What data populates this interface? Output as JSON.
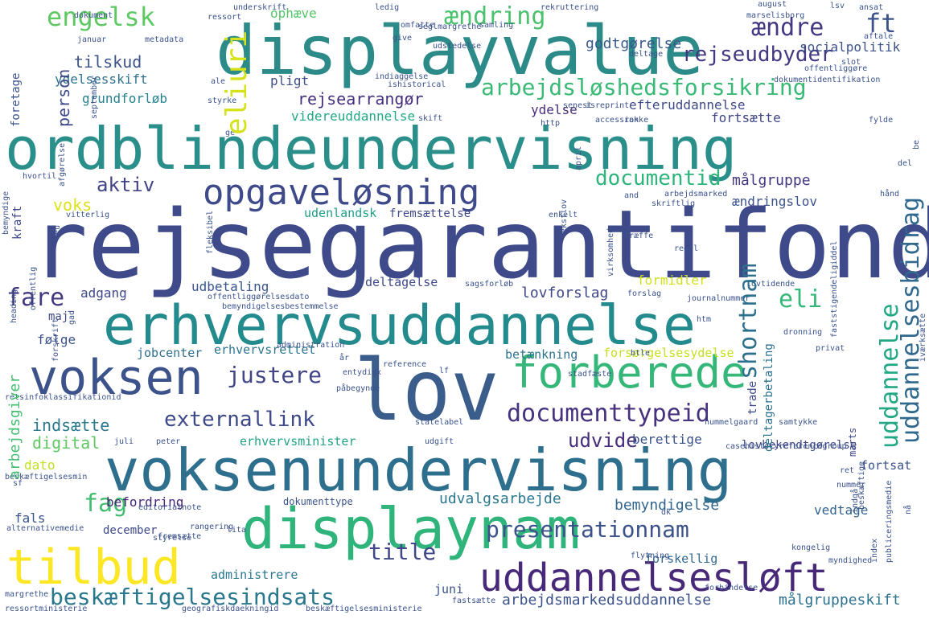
{
  "words": [
    {
      "text": "rejsegarantifond",
      "color": "#3f4a8a"
    },
    {
      "text": "ordblindeundervisning",
      "color": "#2a8f8a"
    },
    {
      "text": "voksenundervisning",
      "color": "#2e6f8e"
    },
    {
      "text": "displayvalue",
      "color": "#2c8a89"
    },
    {
      "text": "erhvervsuddannelse",
      "color": "#238a8d"
    },
    {
      "text": "lov",
      "color": "#3a5d8c"
    },
    {
      "text": "displaynam",
      "color": "#2fb47c"
    },
    {
      "text": "voksen",
      "color": "#3b528b"
    },
    {
      "text": "forberede",
      "color": "#35b779"
    },
    {
      "text": "uddannelsesløft",
      "color": "#482878"
    },
    {
      "text": "tilbud",
      "color": "#fde725"
    },
    {
      "text": "opgaveløsning",
      "color": "#3e4a89"
    },
    {
      "text": "arbejdsløshedsforsikring",
      "color": "#3aba76"
    },
    {
      "text": "documenttypeid",
      "color": "#46327e"
    },
    {
      "text": "presentationnam",
      "color": "#3b528b"
    },
    {
      "text": "beskæftigelsesindsats",
      "color": "#2a788e"
    },
    {
      "text": "externallink",
      "color": "#3e4989"
    },
    {
      "text": "justere",
      "color": "#414487"
    },
    {
      "text": "engelsk",
      "color": "#5ec962"
    },
    {
      "text": "rejseudbyder",
      "color": "#453882"
    },
    {
      "text": "ændring",
      "color": "#4ac16d"
    },
    {
      "text": "ændre",
      "color": "#443983"
    },
    {
      "text": "ft",
      "color": "#3b528b"
    },
    {
      "text": "eliuri",
      "color": "#d5e21a"
    },
    {
      "text": "documentid",
      "color": "#2fb47c"
    },
    {
      "text": "shortnam",
      "color": "#2d708e"
    },
    {
      "text": "uddannelsesbidrag",
      "color": "#31688e"
    },
    {
      "text": "uddannelse",
      "color": "#22a884"
    },
    {
      "text": "fare",
      "color": "#443a83"
    },
    {
      "text": "fag",
      "color": "#42be71"
    },
    {
      "text": "title",
      "color": "#404688"
    },
    {
      "text": "eli",
      "color": "#35b779"
    },
    {
      "text": "rejsearrangør",
      "color": "#46307e"
    },
    {
      "text": "aktiv",
      "color": "#414487"
    },
    {
      "text": "tilskud",
      "color": "#3b528b"
    },
    {
      "text": "person",
      "color": "#3e4a89"
    },
    {
      "text": "udvide",
      "color": "#472d7b"
    },
    {
      "text": "arbejdsmarkedsuddannelse",
      "color": "#3b528b"
    },
    {
      "text": "målgruppeskift",
      "color": "#2c728e"
    },
    {
      "text": "indsætte",
      "color": "#2a788e"
    },
    {
      "text": "digital",
      "color": "#5ec962"
    },
    {
      "text": "udvalgsarbejde",
      "color": "#2a788e"
    },
    {
      "text": "bemyndigelse",
      "color": "#32658e"
    },
    {
      "text": "godtgørelse",
      "color": "#38598c"
    },
    {
      "text": "målgruppe",
      "color": "#453781"
    },
    {
      "text": "lovforslag",
      "color": "#3f4788"
    },
    {
      "text": "udbetaling",
      "color": "#39558c"
    },
    {
      "text": "adgang",
      "color": "#3f4889"
    },
    {
      "text": "ophæve",
      "color": "#54c568"
    },
    {
      "text": "ydelsesskift",
      "color": "#2c728e"
    },
    {
      "text": "grundforløb",
      "color": "#26828e"
    },
    {
      "text": "pligt",
      "color": "#3d4e8a"
    },
    {
      "text": "videreuddannelse",
      "color": "#22a884"
    },
    {
      "text": "efteruddannelse",
      "color": "#3e4989"
    },
    {
      "text": "fortsætte",
      "color": "#404688"
    },
    {
      "text": "ydelse",
      "color": "#472c7a"
    },
    {
      "text": "ændringslov",
      "color": "#3b528b"
    },
    {
      "text": "udenlandsk",
      "color": "#1f9e89"
    },
    {
      "text": "fremsættelse",
      "color": "#3f4889"
    },
    {
      "text": "voks",
      "color": "#dde318"
    },
    {
      "text": "formidler",
      "color": "#d0e11c"
    },
    {
      "text": "deltagelse",
      "color": "#3e4989"
    },
    {
      "text": "følge",
      "color": "#3b528b"
    },
    {
      "text": "jobcenter",
      "color": "#2e6e8e"
    },
    {
      "text": "erhvervsrettet",
      "color": "#2b748e"
    },
    {
      "text": "betænkning",
      "color": "#2c728e"
    },
    {
      "text": "forsørgelsesydelse",
      "color": "#c8e020"
    },
    {
      "text": "erhvervsminister",
      "color": "#20a386"
    },
    {
      "text": "berettige",
      "color": "#3b528b"
    },
    {
      "text": "lovbekendtgørelse",
      "color": "#3f4889"
    },
    {
      "text": "dato",
      "color": "#c2df23"
    },
    {
      "text": "befordring",
      "color": "#482878"
    },
    {
      "text": "december",
      "color": "#3e4989"
    },
    {
      "text": "fals",
      "color": "#3b528b"
    },
    {
      "text": "administrere",
      "color": "#2a788e"
    },
    {
      "text": "forskellig",
      "color": "#31688e"
    },
    {
      "text": "juni",
      "color": "#3b528b"
    },
    {
      "text": "vedtage",
      "color": "#33638d"
    },
    {
      "text": "fortsat",
      "color": "#3b528b"
    },
    {
      "text": "kraft",
      "color": "#3f4889"
    },
    {
      "text": "arbejdsgiver",
      "color": "#43bf71"
    },
    {
      "text": "foretage",
      "color": "#3b528b"
    },
    {
      "text": "maj",
      "color": "#3f4889"
    },
    {
      "text": "trade",
      "color": "#3e4989"
    },
    {
      "text": "deltagerbetaling",
      "color": "#2c728e"
    },
    {
      "text": "marts",
      "color": "#404688"
    },
    {
      "text": "socialpolitik",
      "color": "#3b528b"
    },
    {
      "text": "dokumenttype",
      "color": "#3b528b"
    },
    {
      "text": "underskrift",
      "color": "#3b528b"
    },
    {
      "text": "ledig",
      "color": "#3b528b"
    },
    {
      "text": "samling",
      "color": "#3b528b"
    },
    {
      "text": "ansat",
      "color": "#3b528b"
    },
    {
      "text": "august",
      "color": "#3b528b"
    },
    {
      "text": "marselisborg",
      "color": "#3b528b"
    },
    {
      "text": "januar",
      "color": "#3b528b"
    },
    {
      "text": "metadata",
      "color": "#3b528b"
    },
    {
      "text": "rekruttering",
      "color": "#3b528b"
    },
    {
      "text": "styrke",
      "color": "#3b528b"
    },
    {
      "text": "skift",
      "color": "#3b528b"
    },
    {
      "text": "http",
      "color": "#3b528b"
    },
    {
      "text": "accession",
      "color": "#3b528b"
    },
    {
      "text": "rakke",
      "color": "#3b528b"
    },
    {
      "text": "fylde",
      "color": "#3b528b"
    },
    {
      "text": "april",
      "color": "#3b528b"
    },
    {
      "text": "del",
      "color": "#3b528b"
    },
    {
      "text": "hvortil",
      "color": "#3b528b"
    },
    {
      "text": "vitterlig",
      "color": "#3b528b"
    },
    {
      "text": "skriftlig",
      "color": "#3b528b"
    },
    {
      "text": "arbejdsmarked",
      "color": "#3b528b"
    },
    {
      "text": "hånd",
      "color": "#3b528b"
    },
    {
      "text": "enkelt",
      "color": "#3b528b"
    },
    {
      "text": "træffe",
      "color": "#3b528b"
    },
    {
      "text": "regel",
      "color": "#3b528b"
    },
    {
      "text": "journalnummer",
      "color": "#3b528b"
    },
    {
      "text": "dronning",
      "color": "#3b528b"
    },
    {
      "text": "privat",
      "color": "#3b528b"
    },
    {
      "text": "reference",
      "color": "#3b528b"
    },
    {
      "text": "administration",
      "color": "#3b528b"
    },
    {
      "text": "htm",
      "color": "#3b528b"
    },
    {
      "text": "btle",
      "color": "#3b528b"
    },
    {
      "text": "stadfæste",
      "color": "#3b528b"
    },
    {
      "text": "statelabel",
      "color": "#3b528b"
    },
    {
      "text": "hummelgaard",
      "color": "#3b528b"
    },
    {
      "text": "samtykke",
      "color": "#3b528b"
    },
    {
      "text": "casehistoryreferencegroup",
      "color": "#3b528b"
    },
    {
      "text": "retsinfoklassifikationid",
      "color": "#3b528b"
    },
    {
      "text": "entydig",
      "color": "#3b528b"
    },
    {
      "text": "påbegynde",
      "color": "#3b528b"
    },
    {
      "text": "nummer",
      "color": "#3b528b"
    },
    {
      "text": "index",
      "color": "#3b528b"
    },
    {
      "text": "publiceringsmedie",
      "color": "#3b528b"
    },
    {
      "text": "kongelig",
      "color": "#3b528b"
    },
    {
      "text": "myndighed",
      "color": "#3b528b"
    },
    {
      "text": "flytning",
      "color": "#3b528b"
    },
    {
      "text": "forbindelse",
      "color": "#3b528b"
    },
    {
      "text": "fastsætte",
      "color": "#3b528b"
    },
    {
      "text": "geografiskdaekningid",
      "color": "#3b528b"
    },
    {
      "text": "beskæftigelsesministerie",
      "color": "#3b528b"
    },
    {
      "text": "editorialnote",
      "color": "#3b528b"
    },
    {
      "text": "rangering",
      "color": "#3b528b"
    },
    {
      "text": "styrelse",
      "color": "#3b528b"
    },
    {
      "text": "alternativemedie",
      "color": "#3b528b"
    },
    {
      "text": "margrethe",
      "color": "#3b528b"
    },
    {
      "text": "ressortministerie",
      "color": "#3b528b"
    },
    {
      "text": "beskæftigelsesmin",
      "color": "#3b528b"
    },
    {
      "text": "offentliggørelsesdato",
      "color": "#3b528b"
    },
    {
      "text": "bemyndigelsesbestemmelse",
      "color": "#3b528b"
    },
    {
      "text": "sagsforløb",
      "color": "#3b528b"
    },
    {
      "text": "lovtidende",
      "color": "#3b528b"
    },
    {
      "text": "virksomhed",
      "color": "#3b528b"
    },
    {
      "text": "fleksibel",
      "color": "#3b528b"
    },
    {
      "text": "heading",
      "color": "#3b528b"
    },
    {
      "text": "offentlig",
      "color": "#3b528b"
    },
    {
      "text": "forskrift",
      "color": "#3b528b"
    },
    {
      "text": "bemyndige",
      "color": "#3b528b"
    },
    {
      "text": "afgørelse",
      "color": "#3b528b"
    },
    {
      "text": "september",
      "color": "#3b528b"
    },
    {
      "text": "ressort",
      "color": "#3b528b"
    },
    {
      "text": "udstedelse",
      "color": "#3b528b"
    },
    {
      "text": "seglmargrethe",
      "color": "#3b528b"
    },
    {
      "text": "omfatte",
      "color": "#3b528b"
    },
    {
      "text": "ale",
      "color": "#3b528b"
    },
    {
      "text": "indiaggelse",
      "color": "#3b528b"
    },
    {
      "text": "ishistorical",
      "color": "#3b528b"
    },
    {
      "text": "senest",
      "color": "#3b528b"
    },
    {
      "text": "isreprint",
      "color": "#3b528b"
    },
    {
      "text": "dokumentidentifikation",
      "color": "#3b528b"
    },
    {
      "text": "offentliggøre",
      "color": "#3b528b"
    },
    {
      "text": "slot",
      "color": "#3b528b"
    },
    {
      "text": "aftale",
      "color": "#3b528b"
    },
    {
      "text": "deltage",
      "color": "#3b528b"
    },
    {
      "text": "give",
      "color": "#3b528b"
    },
    {
      "text": "lsv",
      "color": "#3b528b"
    },
    {
      "text": "ge",
      "color": "#3b528b"
    },
    {
      "text": "and",
      "color": "#3b528b"
    },
    {
      "text": "be",
      "color": "#3b528b"
    },
    {
      "text": "forslag",
      "color": "#3b528b"
    },
    {
      "text": "lf",
      "color": "#3b528b"
    },
    {
      "text": "juli",
      "color": "#3b528b"
    },
    {
      "text": "peter",
      "color": "#3b528b"
    },
    {
      "text": "udgift",
      "color": "#3b528b"
    },
    {
      "text": "beskæftige",
      "color": "#3b528b"
    },
    {
      "text": "ret",
      "color": "#3b528b"
    },
    {
      "text": "indgå",
      "color": "#3b528b"
    },
    {
      "text": "fremsætte",
      "color": "#3b528b"
    },
    {
      "text": "lita",
      "color": "#3b528b"
    },
    {
      "text": "dk",
      "color": "#3b528b"
    },
    {
      "text": "år",
      "color": "#3b528b"
    },
    {
      "text": "xx",
      "color": "#3b528b"
    },
    {
      "text": "sf",
      "color": "#3b528b"
    },
    {
      "text": "nå",
      "color": "#3b528b"
    },
    {
      "text": "tekstlov",
      "color": "#3b528b"
    },
    {
      "text": "iværksætte",
      "color": "#3b528b"
    },
    {
      "text": "faststigendeligiddel",
      "color": "#3b528b"
    },
    {
      "text": "dokument",
      "color": "#3b528b"
    },
    {
      "text": "veu",
      "color": "#3b528b"
    },
    {
      "text": "gad",
      "color": "#3b528b"
    },
    {
      "text": "ja",
      "color": "#3b528b"
    },
    {
      "text": "nåde",
      "color": "#3b528b"
    }
  ]
}
